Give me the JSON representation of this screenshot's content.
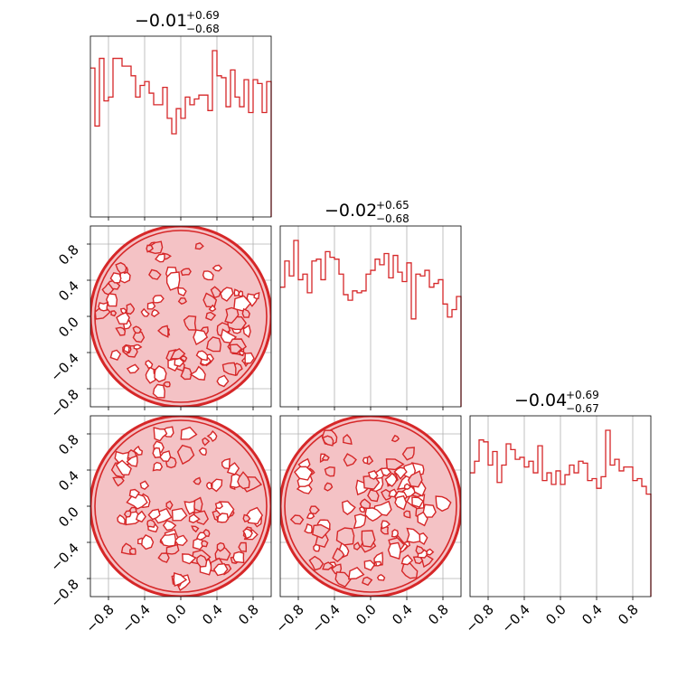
{
  "chart_data": {
    "type": "corner",
    "color": "#d62728",
    "fill_color": "#f4c2c5",
    "axis_range": [
      -1,
      1
    ],
    "ticks": [
      -0.8,
      -0.4,
      0.0,
      0.4,
      0.8
    ],
    "tick_labels": [
      "−0.8",
      "−0.4",
      "0.0",
      "0.4",
      "0.8"
    ],
    "grid": true,
    "titles": [
      {
        "center": "−0.01",
        "upper": "+0.69",
        "lower": "−0.68"
      },
      {
        "center": "−0.02",
        "upper": "+0.65",
        "lower": "−0.68"
      },
      {
        "center": "−0.04",
        "upper": "+0.69",
        "lower": "−0.67"
      }
    ],
    "histograms": [
      {
        "bin_edges": [
          -1.0,
          -0.95,
          -0.9,
          -0.85,
          -0.8,
          -0.75,
          -0.7,
          -0.65,
          -0.6,
          -0.55,
          -0.5,
          -0.45,
          -0.4,
          -0.35,
          -0.3,
          -0.25,
          -0.2,
          -0.15,
          -0.1,
          -0.05,
          0.0,
          0.05,
          0.1,
          0.15,
          0.2,
          0.25,
          0.3,
          0.35,
          0.4,
          0.45,
          0.5,
          0.55,
          0.6,
          0.65,
          0.7,
          0.75,
          0.8,
          0.85,
          0.9,
          0.95,
          1.0
        ],
        "counts": [
          0.77,
          0.47,
          0.82,
          0.6,
          0.62,
          0.82,
          0.82,
          0.78,
          0.78,
          0.73,
          0.62,
          0.68,
          0.7,
          0.64,
          0.58,
          0.58,
          0.67,
          0.51,
          0.43,
          0.56,
          0.51,
          0.62,
          0.58,
          0.61,
          0.63,
          0.63,
          0.55,
          0.86,
          0.73,
          0.72,
          0.57,
          0.76,
          0.62,
          0.57,
          0.71,
          0.54,
          0.71,
          0.69,
          0.54,
          0.7
        ]
      },
      {
        "bin_edges": [
          -1.0,
          -0.95,
          -0.9,
          -0.85,
          -0.8,
          -0.75,
          -0.7,
          -0.65,
          -0.6,
          -0.55,
          -0.5,
          -0.45,
          -0.4,
          -0.35,
          -0.3,
          -0.25,
          -0.2,
          -0.15,
          -0.1,
          -0.05,
          0.0,
          0.05,
          0.1,
          0.15,
          0.2,
          0.25,
          0.3,
          0.35,
          0.4,
          0.45,
          0.5,
          0.55,
          0.6,
          0.65,
          0.7,
          0.75,
          0.8,
          0.85,
          0.9,
          0.95,
          1.0
        ],
        "counts": [
          0.64,
          0.78,
          0.7,
          0.89,
          0.68,
          0.71,
          0.61,
          0.78,
          0.79,
          0.68,
          0.83,
          0.8,
          0.79,
          0.71,
          0.6,
          0.57,
          0.62,
          0.61,
          0.62,
          0.71,
          0.73,
          0.79,
          0.76,
          0.82,
          0.69,
          0.81,
          0.72,
          0.67,
          0.77,
          0.47,
          0.71,
          0.7,
          0.73,
          0.64,
          0.66,
          0.68,
          0.55,
          0.48,
          0.52,
          0.59
        ]
      },
      {
        "bin_edges": [
          -1.0,
          -0.95,
          -0.9,
          -0.85,
          -0.8,
          -0.75,
          -0.7,
          -0.65,
          -0.6,
          -0.55,
          -0.5,
          -0.45,
          -0.4,
          -0.35,
          -0.3,
          -0.25,
          -0.2,
          -0.15,
          -0.1,
          -0.05,
          0.0,
          0.05,
          0.1,
          0.15,
          0.2,
          0.25,
          0.3,
          0.35,
          0.4,
          0.45,
          0.5,
          0.55,
          0.6,
          0.65,
          0.7,
          0.75,
          0.8,
          0.85,
          0.9,
          0.95,
          1.0
        ],
        "counts": [
          0.64,
          0.7,
          0.81,
          0.8,
          0.68,
          0.75,
          0.59,
          0.68,
          0.79,
          0.76,
          0.71,
          0.72,
          0.67,
          0.7,
          0.64,
          0.78,
          0.6,
          0.64,
          0.58,
          0.65,
          0.58,
          0.63,
          0.68,
          0.64,
          0.7,
          0.69,
          0.6,
          0.61,
          0.56,
          0.62,
          0.86,
          0.68,
          0.71,
          0.65,
          0.67,
          0.67,
          0.6,
          0.61,
          0.57,
          0.53
        ]
      }
    ],
    "scatter_pairs": [
      {
        "x_param": 0,
        "y_param": 1
      },
      {
        "x_param": 0,
        "y_param": 2
      },
      {
        "x_param": 1,
        "y_param": 2
      }
    ],
    "support": "unit disk (x² + y² ≤ 1)"
  }
}
